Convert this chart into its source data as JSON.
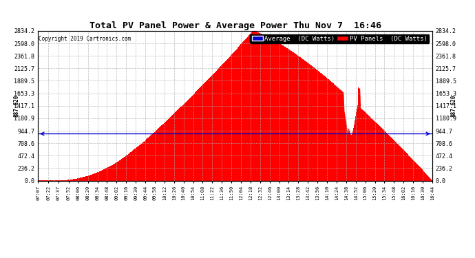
{
  "title": "Total PV Panel Power & Average Power Thu Nov 7  16:46",
  "copyright": "Copyright 2019 Cartronics.com",
  "average_value": 887.62,
  "y_max": 2834.2,
  "y_ticks": [
    0.0,
    236.2,
    472.4,
    708.6,
    944.7,
    1180.9,
    1417.1,
    1653.3,
    1889.5,
    2125.7,
    2361.8,
    2598.0,
    2834.2
  ],
  "avg_line_color": "#0000cc",
  "fill_color": "#ff0000",
  "bg_color": "#ffffff",
  "grid_color": "#aaaaaa",
  "legend_avg_bg": "#0000cc",
  "legend_avg_text": "Average  (DC Watts)",
  "legend_pv_bg": "#ff0000",
  "legend_pv_text": "PV Panels  (DC Watts)",
  "x_tick_labels": [
    "07:07",
    "07:22",
    "07:37",
    "07:52",
    "08:06",
    "08:20",
    "08:34",
    "08:48",
    "09:02",
    "09:16",
    "09:30",
    "09:44",
    "09:58",
    "10:12",
    "10:26",
    "10:40",
    "10:54",
    "11:08",
    "11:22",
    "11:36",
    "11:50",
    "12:04",
    "12:18",
    "12:32",
    "12:46",
    "13:00",
    "13:14",
    "13:28",
    "13:42",
    "13:56",
    "14:10",
    "14:24",
    "14:38",
    "14:52",
    "15:06",
    "15:20",
    "15:34",
    "15:48",
    "16:02",
    "16:16",
    "16:30",
    "16:44"
  ]
}
